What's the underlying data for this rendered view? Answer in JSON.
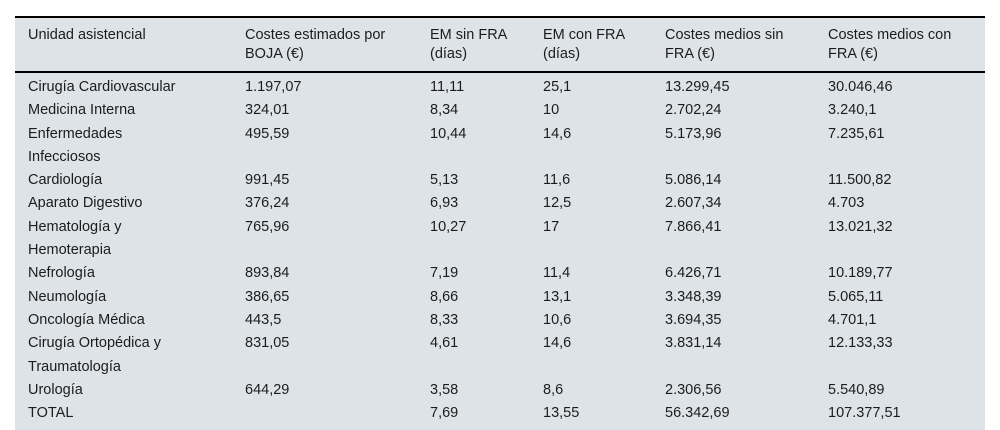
{
  "colors": {
    "table_background": "#dee3e7",
    "rule": "#000000",
    "text": "#1c1c1c",
    "page_background": "#ffffff"
  },
  "table": {
    "columns": [
      "Unidad asistencial",
      "Costes estimados por\nBOJA (€)",
      "EM sin FRA\n(días)",
      "EM con FRA\n(días)",
      "Costes medios sin\nFRA (€)",
      "Costes medios con\nFRA (€)"
    ],
    "rows": [
      {
        "cells": [
          "Cirugía Cardiovascular",
          "1.197,07",
          "11,11",
          "25,1",
          "13.299,45",
          "30.046,46"
        ]
      },
      {
        "cells": [
          "Medicina Interna",
          "324,01",
          "8,34",
          "10",
          "2.702,24",
          "3.240,1"
        ]
      },
      {
        "cells": [
          "Enfermedades\nInfecciosos",
          "495,59",
          "10,44",
          "14,6",
          "5.173,96",
          "7.235,61"
        ]
      },
      {
        "cells": [
          "Cardiología",
          "991,45",
          "5,13",
          "11,6",
          "5.086,14",
          "11.500,82"
        ]
      },
      {
        "cells": [
          "Aparato Digestivo",
          "376,24",
          "6,93",
          "12,5",
          "2.607,34",
          "4.703"
        ]
      },
      {
        "cells": [
          "Hematología y\nHemoterapia",
          "765,96",
          "10,27",
          "17",
          "7.866,41",
          "13.021,32"
        ]
      },
      {
        "cells": [
          "Nefrología",
          "893,84",
          "7,19",
          "11,4",
          "6.426,71",
          "10.189,77"
        ]
      },
      {
        "cells": [
          "Neumología",
          "386,65",
          "8,66",
          "13,1",
          "3.348,39",
          "5.065,11"
        ]
      },
      {
        "cells": [
          "Oncología Médica",
          "443,5",
          "8,33",
          "10,6",
          "3.694,35",
          "4.701,1"
        ]
      },
      {
        "cells": [
          "Cirugía Ortopédica y\nTraumatología",
          "831,05",
          "4,61",
          "14,6",
          "3.831,14",
          "12.133,33"
        ]
      },
      {
        "cells": [
          "Urología",
          "644,29",
          "3,58",
          "8,6",
          "2.306,56",
          "5.540,89"
        ]
      },
      {
        "cells": [
          "TOTAL",
          "",
          "7,69",
          "13,55",
          "56.342,69",
          "107.377,51"
        ]
      }
    ]
  }
}
